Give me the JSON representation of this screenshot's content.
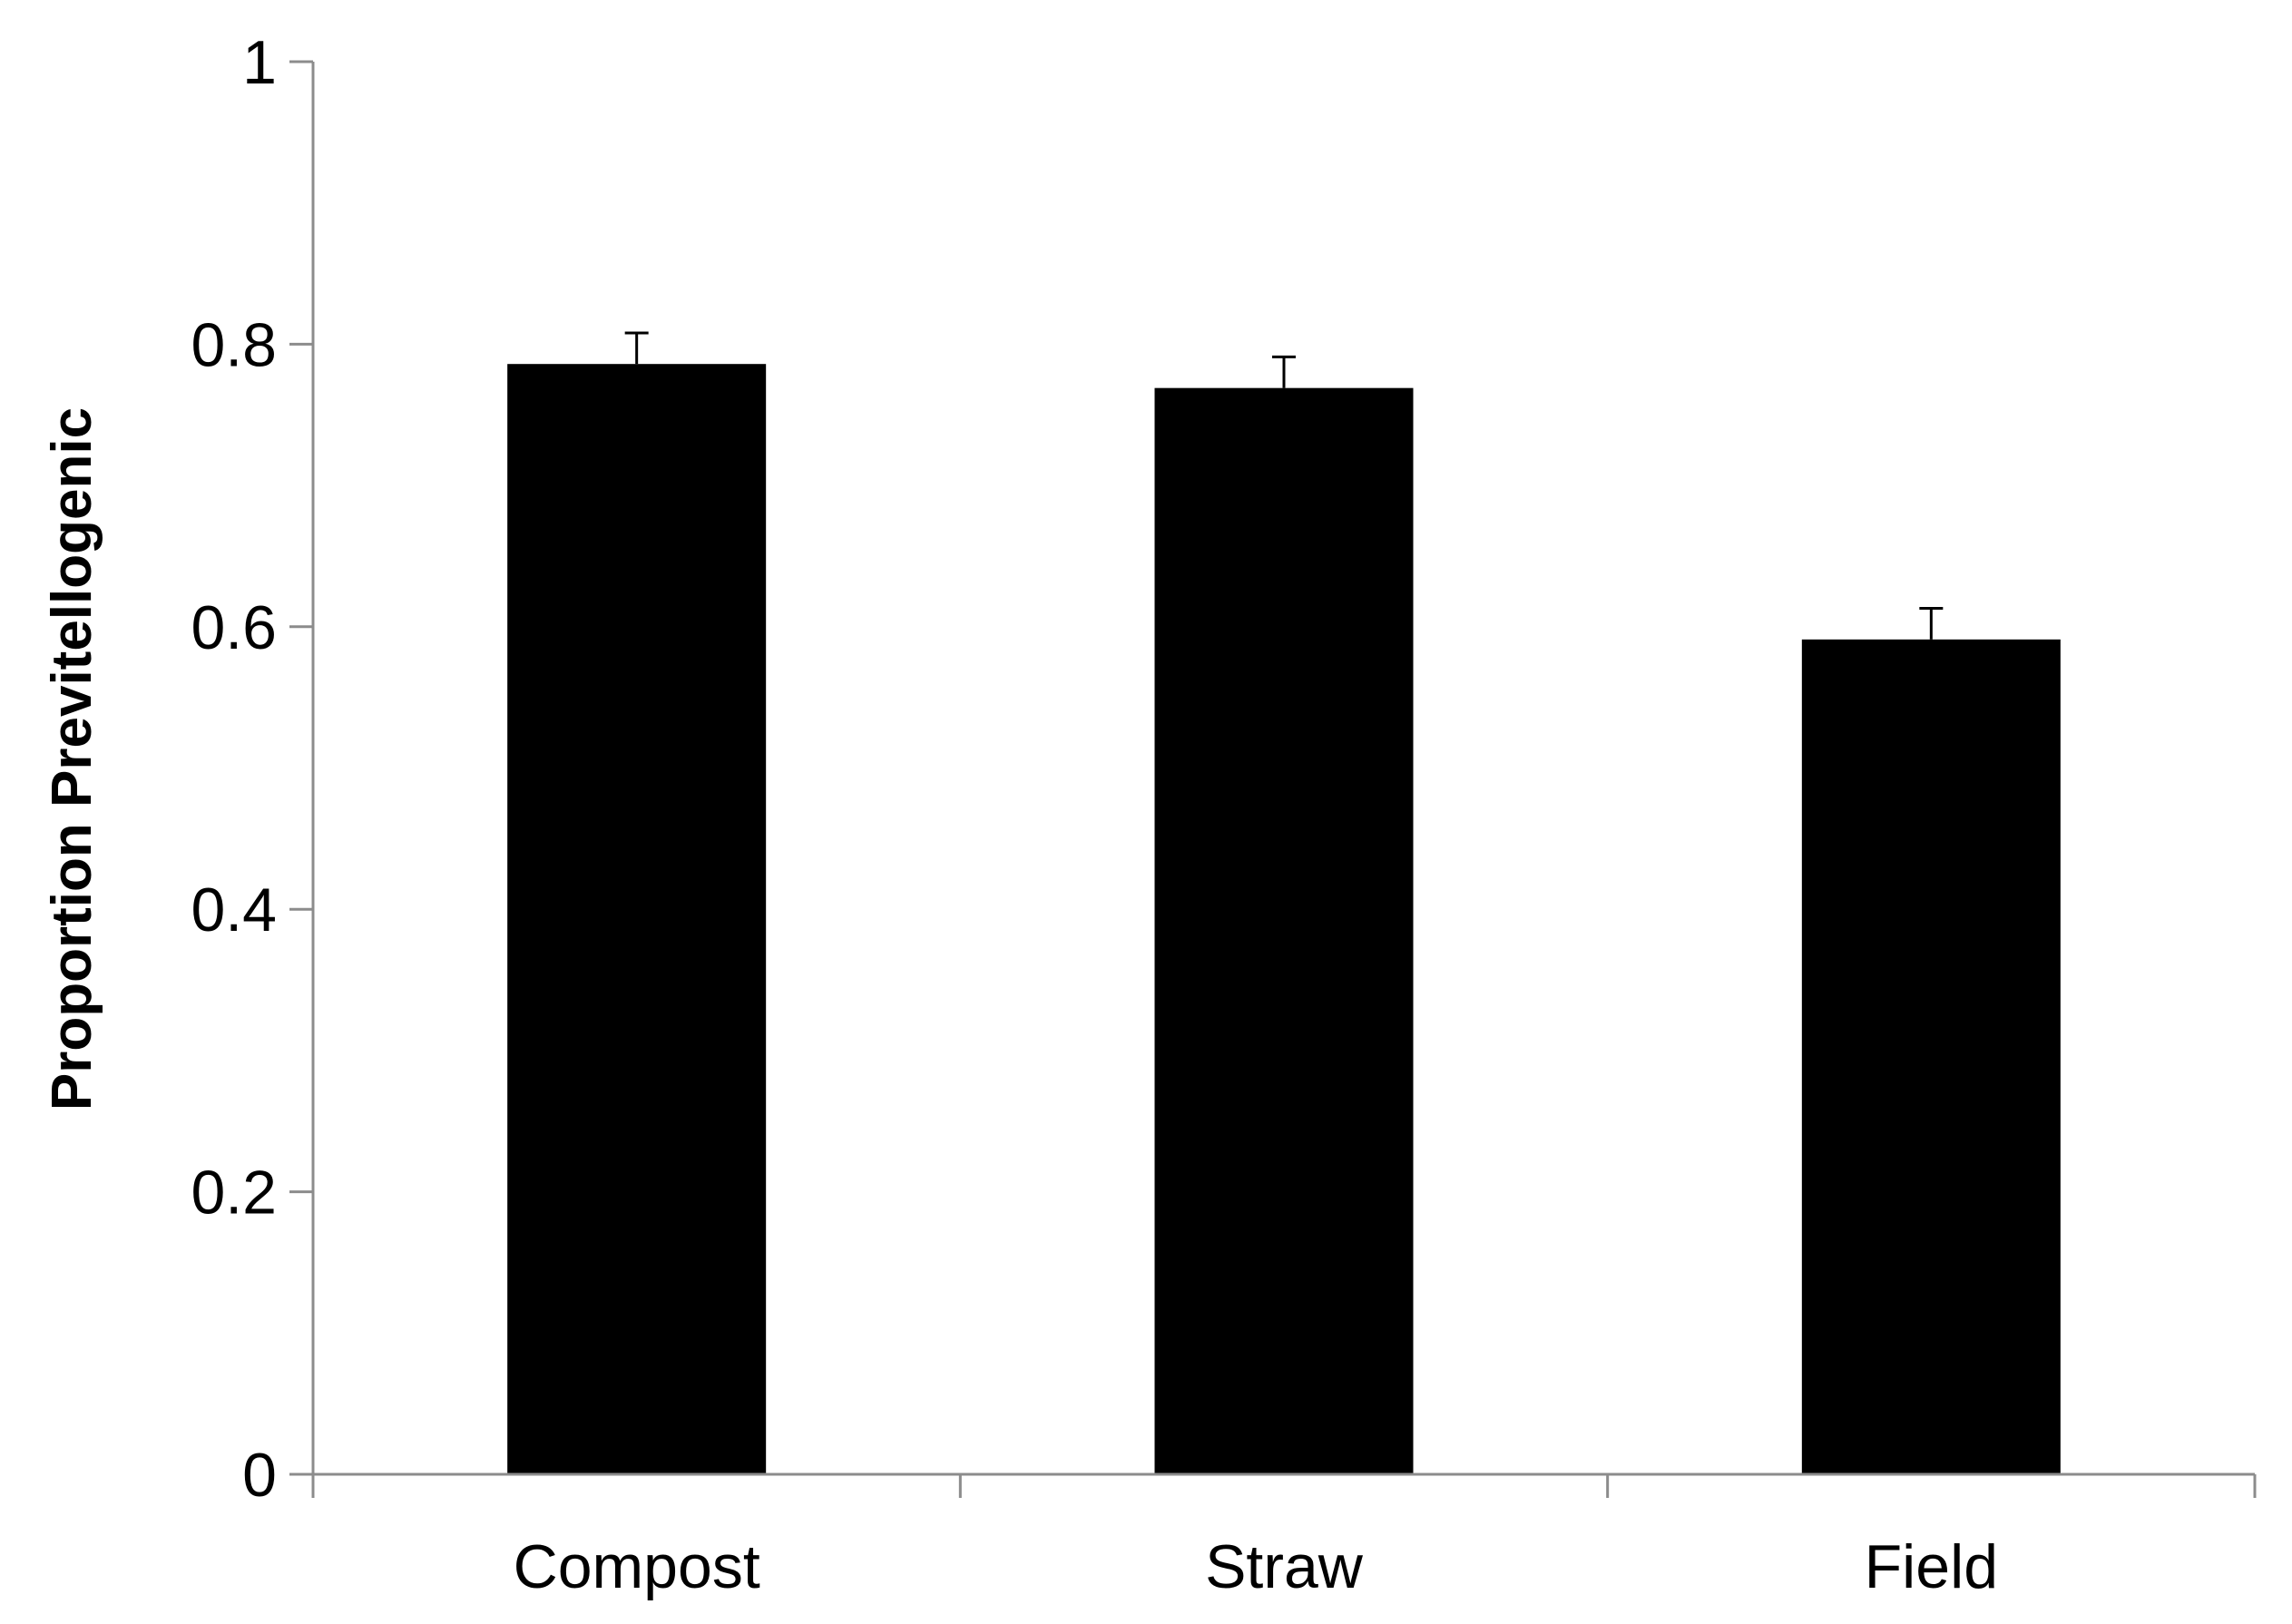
{
  "chart_data": {
    "type": "bar",
    "title": "",
    "xlabel": "",
    "ylabel": "Proportion Previtellogenic",
    "categories": [
      "Compost",
      "Straw",
      "Field"
    ],
    "values": [
      0.786,
      0.769,
      0.591
    ],
    "error_plus": [
      0.022,
      0.022,
      0.022
    ],
    "ylim": [
      0,
      1
    ],
    "yticks": [
      "0",
      "0.2",
      "0.4",
      "0.6",
      "0.8",
      "1"
    ],
    "grid": false,
    "legend": "none",
    "bar_color": "#000000",
    "axis_color": "#8c8c8c"
  }
}
